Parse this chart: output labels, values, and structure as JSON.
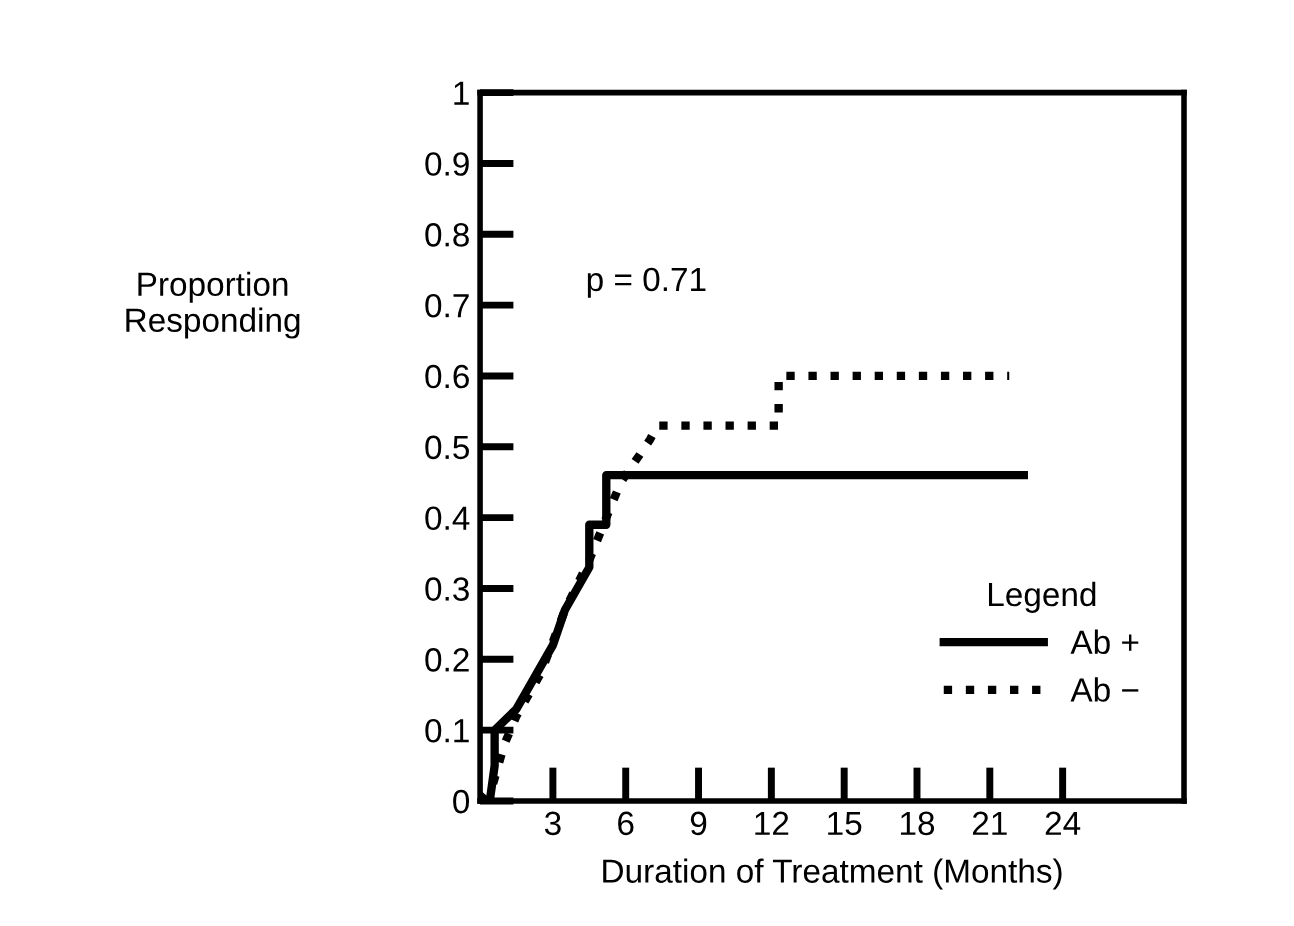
{
  "chart_data": {
    "type": "line",
    "xlabel": "Duration of Treatment (Months)",
    "ylabel": "Proportion\nResponding",
    "legend_title": "Legend",
    "legend": "right",
    "grid": false,
    "marker": "none",
    "xlim": [
      0,
      29
    ],
    "xticks": [
      3,
      6,
      9,
      12,
      15,
      18,
      21,
      24
    ],
    "ylim": [
      0,
      1
    ],
    "yticks": [
      0,
      0.1,
      0.2,
      0.3,
      0.4,
      0.5,
      0.6,
      0.7,
      0.8,
      0.9,
      1
    ],
    "annotations": [
      "p = 0.71"
    ],
    "series": [
      {
        "name": "Ab +",
        "color": "#000000",
        "line_style": "solid",
        "x": [
          0,
          0.4,
          0.6,
          0.6,
          1.5,
          2.5,
          3.0,
          3.5,
          4.0,
          4.5,
          4.5,
          5.2,
          5.2,
          22.4
        ],
        "values": [
          0,
          0,
          0.05,
          0.1,
          0.13,
          0.19,
          0.22,
          0.27,
          0.3,
          0.33,
          0.39,
          0.39,
          0.46,
          0.46
        ]
      },
      {
        "name": "Ab −",
        "color": "#000000",
        "line_style": "dotted",
        "x": [
          0,
          0.5,
          1.0,
          1.5,
          2.5,
          3.5,
          4.5,
          5.2,
          5.8,
          6.4,
          7.0,
          7.3,
          12.3,
          12.3,
          21.8
        ],
        "values": [
          0,
          0.02,
          0.08,
          0.12,
          0.18,
          0.27,
          0.34,
          0.4,
          0.45,
          0.48,
          0.51,
          0.53,
          0.53,
          0.6,
          0.6
        ]
      }
    ]
  }
}
